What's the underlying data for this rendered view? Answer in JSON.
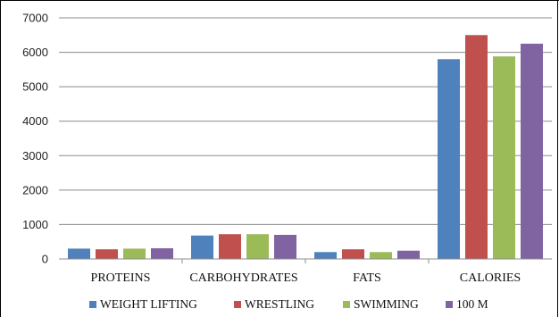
{
  "chart_data": {
    "type": "bar",
    "title": "",
    "xlabel": "",
    "ylabel": "",
    "categories": [
      "PROTEINS",
      "CARBOHYDRATES",
      "FATS",
      "CALORIES"
    ],
    "series": [
      {
        "name": "WEIGHT LIFTING",
        "values": [
          300,
          680,
          200,
          5800
        ],
        "color": "#4F81BD"
      },
      {
        "name": "WRESTLING",
        "values": [
          280,
          720,
          280,
          6500
        ],
        "color": "#C0504D"
      },
      {
        "name": "SWIMMING",
        "values": [
          300,
          720,
          200,
          5880
        ],
        "color": "#9BBB59"
      },
      {
        "name": "100 M",
        "values": [
          310,
          700,
          240,
          6250
        ],
        "color": "#8064A2"
      }
    ],
    "ylim": [
      0,
      7000
    ],
    "yticks": [
      0,
      1000,
      2000,
      3000,
      4000,
      5000,
      6000,
      7000
    ],
    "grid": true,
    "legend": "bottom"
  }
}
